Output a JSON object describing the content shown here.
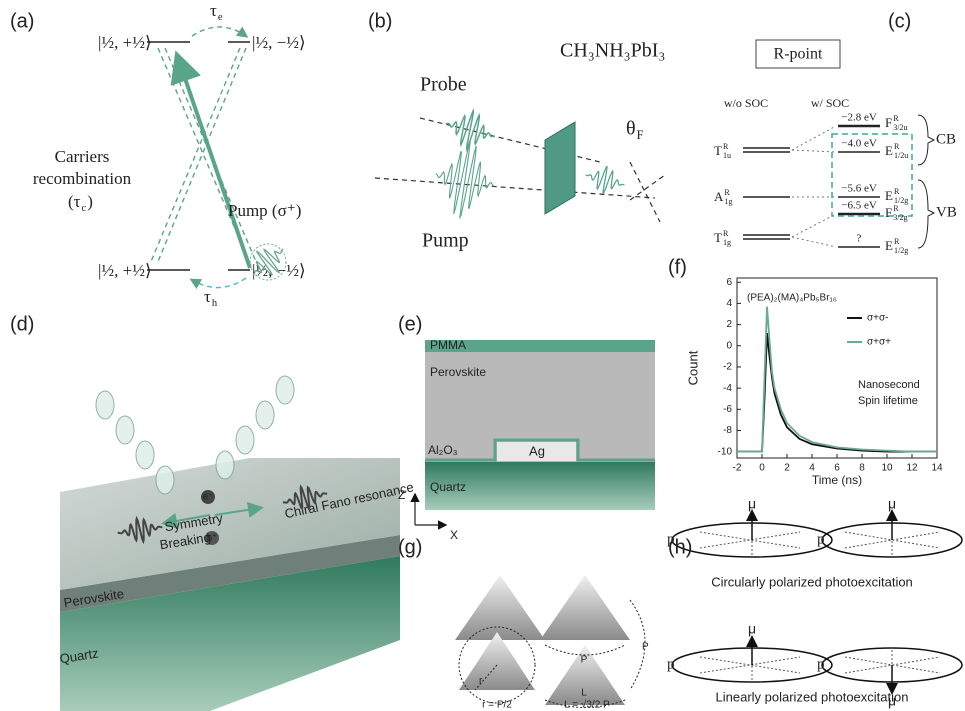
{
  "panels": {
    "a": {
      "label": "(a)",
      "tau_e": {
        "base": "τ",
        "sub": "e"
      },
      "tau_h": {
        "base": "τ",
        "sub": "h"
      },
      "ket_top_left": "|½, +½⟩",
      "ket_top_right": "|½, −½⟩",
      "ket_bottom_left": "|½, +½⟩",
      "ket_bottom_right": "|½, −½⟩",
      "recombination": [
        "Carriers",
        "recombination"
      ],
      "tau_c": {
        "base": "(τ",
        "sub": "c",
        "after": ")"
      },
      "pump": "Pump (σ⁺)"
    },
    "b": {
      "label": "(b)",
      "probe": "Probe",
      "pump": "Pump",
      "sample": "CH₃NH₃PbI₃",
      "angle": {
        "base": "θ",
        "sub": "F"
      }
    },
    "c": {
      "label": "(c)",
      "title": "R-point",
      "without": "w/o SOC",
      "with": "w/ SOC",
      "left_states": [
        {
          "base": "T",
          "sub": "1u",
          "sup": "R"
        },
        {
          "base": "A",
          "sub": "1g",
          "sup": "R"
        },
        {
          "base": "T",
          "sub": "1g",
          "sup": "R"
        }
      ],
      "energies": [
        "−2.8 eV",
        "−4.0 eV",
        "−5.6 eV",
        "−6.5 eV",
        "?"
      ],
      "right_states": [
        {
          "base": "F",
          "sub": "3/2u",
          "sup": "R"
        },
        {
          "base": "E",
          "sub": "1/2u",
          "sup": "R"
        },
        {
          "base": "E",
          "sub": "1/2g",
          "sup": "R"
        },
        {
          "base": "F",
          "sub": "3/2g",
          "sup": "R"
        },
        {
          "base": "E",
          "sub": "1/2g",
          "sup": "R"
        }
      ],
      "bands": [
        "CB",
        "VB"
      ]
    },
    "d": {
      "label": "(d)",
      "layers": [
        "Perovskite",
        "Quartz"
      ],
      "symmetry": [
        "Symmetry",
        "Breaking"
      ],
      "fano": "Chiral Fano resonance",
      "electron": "e⁻",
      "hole": "h⁺"
    },
    "e": {
      "label": "(e)",
      "pmma": "PMMA",
      "perovskite": "Perovskite",
      "alumina": "Al₂O₃",
      "silver": "Ag",
      "quartz": "Quartz",
      "axes": [
        "Z",
        "X"
      ]
    },
    "g": {
      "label": "(g)",
      "periods": [
        "P",
        "P"
      ],
      "side": "L",
      "radius": "r",
      "radius_formula": "r = P/2",
      "side_formula": "L = √3/2 P"
    },
    "h": {
      "label": "(h)",
      "p": [
        "p",
        "p",
        "p",
        "p"
      ],
      "mu": [
        "μ",
        "μ",
        "μ",
        "μ"
      ],
      "captions": [
        "Circularly polarized photoexcitation",
        "Linearly polarized photoexcitation"
      ]
    }
  },
  "chart_data": {
    "type": "line",
    "panel_label": "(f)",
    "title": "(PEA)₂(MA)₄Pb₅Br₁₆",
    "annotation": [
      "Nanosecond",
      "Spin lifetime"
    ],
    "xlabel": "Time (ns)",
    "ylabel": "Count",
    "x": [
      -2,
      -1,
      0,
      0.2,
      0.4,
      0.6,
      0.8,
      1,
      1.5,
      2,
      3,
      4,
      6,
      8,
      10,
      12,
      14
    ],
    "series": [
      {
        "name": "σ+σ-",
        "color": "#111111",
        "values": [
          -10,
          -10,
          -10,
          -5,
          1.2,
          -1,
          -3,
          -4.5,
          -6.5,
          -7.7,
          -8.8,
          -9.3,
          -9.7,
          -9.9,
          -10,
          -10,
          -10
        ]
      },
      {
        "name": "σ+σ+",
        "color": "#6aaa8e",
        "values": [
          -10,
          -10,
          -10,
          -3,
          3.7,
          0.5,
          -2.5,
          -4,
          -6,
          -7.3,
          -8.5,
          -9.1,
          -9.6,
          -9.8,
          -9.9,
          -10,
          -10
        ]
      }
    ],
    "xlim": [
      -2,
      14
    ],
    "xticks": [
      -2,
      0,
      2,
      4,
      6,
      8,
      10,
      12,
      14
    ],
    "ylim": [
      -10.6,
      6.4
    ],
    "yticks": [
      6,
      4,
      2,
      0,
      -2,
      -4,
      -6,
      -8,
      -10
    ]
  }
}
